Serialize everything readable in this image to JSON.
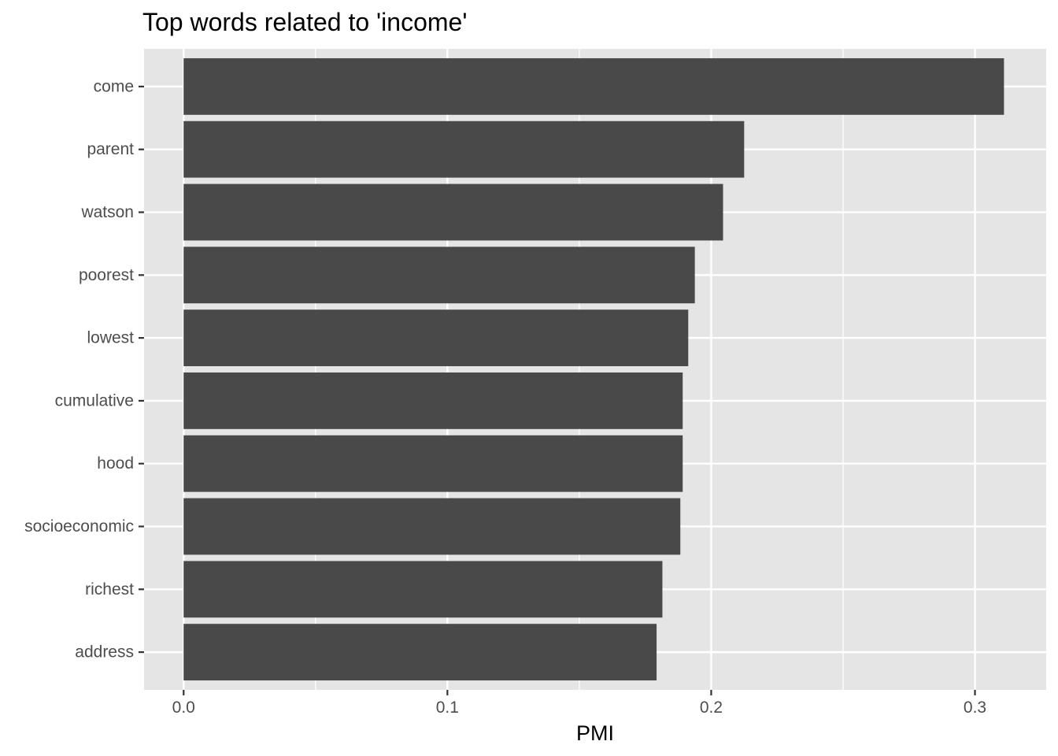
{
  "chart_data": {
    "type": "bar",
    "orientation": "horizontal",
    "title": "Top words related to 'income'",
    "xlabel": "PMI",
    "ylabel": "",
    "categories": [
      "come",
      "parent",
      "watson",
      "poorest",
      "lowest",
      "cumulative",
      "hood",
      "socioeconomic",
      "richest",
      "address"
    ],
    "values": [
      0.311,
      0.2125,
      0.2045,
      0.1938,
      0.1913,
      0.1892,
      0.1892,
      0.1883,
      0.1815,
      0.1793
    ],
    "xlim": [
      -0.015,
      0.327
    ],
    "x_ticks": [
      0.0,
      0.1,
      0.2,
      0.3
    ],
    "x_tick_labels": [
      "0.0",
      "0.1",
      "0.2",
      "0.3"
    ],
    "grid": true,
    "legend": "none"
  },
  "colors": {
    "panel_background": "#e5e5e5",
    "grid": "#ffffff",
    "bar_fill": "#494949",
    "tick_label": "#4d4d4d",
    "tick_mark": "#333333",
    "title": "#000000"
  }
}
